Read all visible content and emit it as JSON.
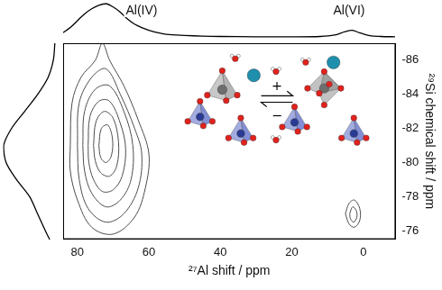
{
  "chart_data": {
    "type": "contour",
    "x_label": "²⁷Al shift / ppm",
    "y_label": "²⁹Si chemical shift / ppm",
    "xlim": [
      84,
      -9
    ],
    "ylim": [
      -75.5,
      -87
    ],
    "xticks": [
      80,
      60,
      40,
      20,
      0
    ],
    "yticks": [
      -86,
      -84,
      -82,
      -80,
      -78,
      -76
    ],
    "grid": false,
    "color": "#4d4d4d",
    "contours": [
      [
        [
          82,
          -81
        ],
        [
          81.5,
          -83.5
        ],
        [
          79,
          -85
        ],
        [
          75,
          -86
        ],
        [
          73,
          -87
        ],
        [
          71,
          -86
        ],
        [
          67,
          -84.5
        ],
        [
          63,
          -82.5
        ],
        [
          60,
          -80.5
        ],
        [
          61,
          -78.5
        ],
        [
          64,
          -76.8
        ],
        [
          70,
          -75.8
        ],
        [
          76,
          -76.2
        ],
        [
          80,
          -77.8
        ],
        [
          82,
          -79.5
        ],
        [
          82,
          -81
        ]
      ],
      [
        [
          80,
          -81
        ],
        [
          79.5,
          -83.5
        ],
        [
          76,
          -85
        ],
        [
          72,
          -85.5
        ],
        [
          68,
          -84
        ],
        [
          64,
          -82
        ],
        [
          62,
          -80.5
        ],
        [
          63,
          -78.5
        ],
        [
          67,
          -77
        ],
        [
          72,
          -76.5
        ],
        [
          77,
          -77.3
        ],
        [
          79.5,
          -79
        ],
        [
          80,
          -81
        ]
      ],
      [
        [
          78.5,
          -81
        ],
        [
          78,
          -83
        ],
        [
          75,
          -84.3
        ],
        [
          71,
          -84.5
        ],
        [
          67,
          -83
        ],
        [
          64.5,
          -81
        ],
        [
          65,
          -79
        ],
        [
          68,
          -77.8
        ],
        [
          72,
          -77.4
        ],
        [
          76,
          -78.2
        ],
        [
          78,
          -79.5
        ],
        [
          78.5,
          -81
        ]
      ],
      [
        [
          77,
          -81
        ],
        [
          76.5,
          -82.7
        ],
        [
          74,
          -83.6
        ],
        [
          71,
          -83.6
        ],
        [
          68,
          -82.3
        ],
        [
          66.5,
          -80.8
        ],
        [
          67.5,
          -79.2
        ],
        [
          70,
          -78.4
        ],
        [
          73,
          -78.3
        ],
        [
          75.5,
          -79
        ],
        [
          76.8,
          -80
        ],
        [
          77,
          -81
        ]
      ],
      [
        [
          75.5,
          -81
        ],
        [
          74.8,
          -82.4
        ],
        [
          72.5,
          -83
        ],
        [
          70,
          -82.6
        ],
        [
          68.5,
          -81.2
        ],
        [
          69,
          -79.8
        ],
        [
          71,
          -79.2
        ],
        [
          73.5,
          -79.4
        ],
        [
          75,
          -80.1
        ],
        [
          75.5,
          -81
        ]
      ],
      [
        [
          74,
          -81
        ],
        [
          73.3,
          -82
        ],
        [
          71.5,
          -82.2
        ],
        [
          70.2,
          -81.4
        ],
        [
          70.5,
          -80.4
        ],
        [
          72,
          -80
        ],
        [
          73.5,
          -80.3
        ],
        [
          74,
          -81
        ]
      ],
      [
        [
          5,
          -77
        ],
        [
          4,
          -77.6
        ],
        [
          2.5,
          -77.8
        ],
        [
          1,
          -77.3
        ],
        [
          1,
          -76.6
        ],
        [
          2.5,
          -76.2
        ],
        [
          4,
          -76.4
        ],
        [
          5,
          -77
        ]
      ],
      [
        [
          3.8,
          -77
        ],
        [
          3,
          -77.4
        ],
        [
          2,
          -77.2
        ],
        [
          1.8,
          -76.8
        ],
        [
          2.7,
          -76.5
        ],
        [
          3.6,
          -76.7
        ],
        [
          3.8,
          -77
        ]
      ]
    ],
    "x_projection": {
      "x": [
        84,
        82,
        80,
        78,
        76,
        74,
        72,
        70,
        68,
        66,
        64,
        62,
        60,
        58,
        55,
        50,
        45,
        40,
        30,
        20,
        12,
        8,
        5,
        3,
        1,
        -2,
        -5,
        -9
      ],
      "values": [
        0.15,
        0.3,
        0.5,
        0.7,
        0.85,
        0.95,
        1.0,
        0.9,
        0.75,
        0.55,
        0.4,
        0.3,
        0.22,
        0.16,
        0.1,
        0.07,
        0.05,
        0.04,
        0.03,
        0.03,
        0.04,
        0.08,
        0.18,
        0.22,
        0.15,
        0.06,
        0.04,
        0.03
      ]
    },
    "y_projection": {
      "y": [
        -87,
        -86,
        -85,
        -84,
        -83,
        -82,
        -81,
        -80,
        -79,
        -78,
        -77,
        -76,
        -75.5
      ],
      "values": [
        0.02,
        0.05,
        0.15,
        0.35,
        0.6,
        0.85,
        1.0,
        0.95,
        0.75,
        0.5,
        0.35,
        0.2,
        0.12
      ]
    },
    "annotations": [
      {
        "text": "Al(IV)",
        "x": 62
      },
      {
        "text": "Al(VI)",
        "x": 4
      }
    ],
    "inset_labels": [
      "+",
      "−"
    ]
  }
}
